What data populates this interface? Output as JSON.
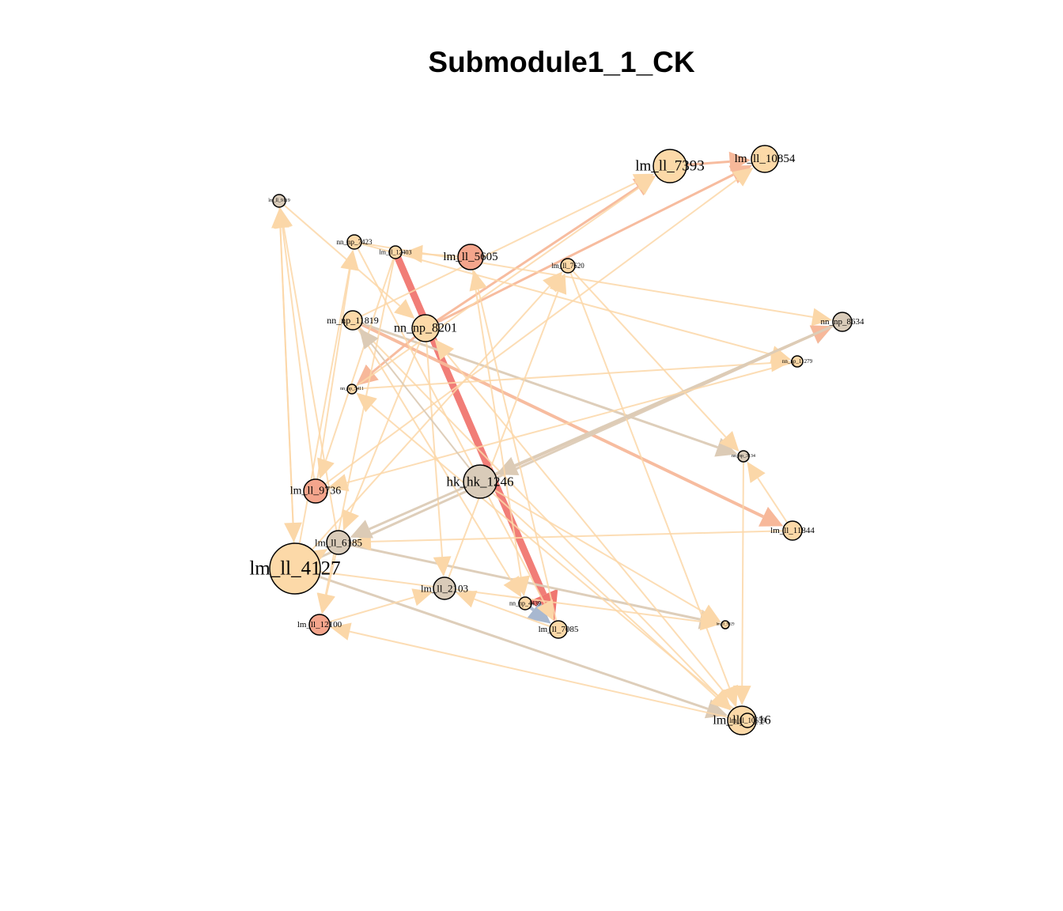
{
  "title": "Submodule1_1_CK",
  "colors": {
    "peach": "#fcd9a8",
    "salmon": "#f4a58c",
    "gray": "#d9cbb9",
    "light": "#fbe0b9",
    "edge_light": "#fbd7a8",
    "edge_gray": "#dccbb6",
    "edge_salmon": "#f7b89a",
    "edge_red": "#f07670",
    "edge_blue": "#a8b8d0"
  },
  "nodes": [
    {
      "id": "n0",
      "label": "lm_ll_7393",
      "color": "peach",
      "r": 21,
      "fs": 19
    },
    {
      "id": "n1",
      "label": "lm_ll_10854",
      "color": "peach",
      "r": 17,
      "fs": 15
    },
    {
      "id": "n2",
      "label": "lm_ll_9119",
      "color": "gray",
      "r": 8,
      "fs": 6
    },
    {
      "id": "n3",
      "label": "nn_np_7423",
      "color": "peach",
      "r": 9,
      "fs": 9
    },
    {
      "id": "n4",
      "label": "lm_ll_12403",
      "color": "peach",
      "r": 8,
      "fs": 8
    },
    {
      "id": "n5",
      "label": "lm_ll_5605",
      "color": "salmon",
      "r": 16,
      "fs": 15
    },
    {
      "id": "n6",
      "label": "lm_ll_7620",
      "color": "peach",
      "r": 9,
      "fs": 9
    },
    {
      "id": "n7",
      "label": "nn_np_11819",
      "color": "peach",
      "r": 12,
      "fs": 12
    },
    {
      "id": "n8",
      "label": "nn_np_8201",
      "color": "peach",
      "r": 17,
      "fs": 16
    },
    {
      "id": "n9",
      "label": "nn_np_8634",
      "color": "gray",
      "r": 12,
      "fs": 11
    },
    {
      "id": "n10",
      "label": "nn_np_11279",
      "color": "peach",
      "r": 7,
      "fs": 7
    },
    {
      "id": "n11",
      "label": "nn_np_5411",
      "color": "peach",
      "r": 6,
      "fs": 6
    },
    {
      "id": "n12",
      "label": "nn_np_3134",
      "color": "gray",
      "r": 7,
      "fs": 6
    },
    {
      "id": "n13",
      "label": "hk_hk_1246",
      "color": "gray",
      "r": 21,
      "fs": 17
    },
    {
      "id": "n14",
      "label": "lm_ll_9736",
      "color": "salmon",
      "r": 15,
      "fs": 14
    },
    {
      "id": "n15",
      "label": "lm_ll_11844",
      "color": "peach",
      "r": 12,
      "fs": 11
    },
    {
      "id": "n16",
      "label": "lm_ll_6185",
      "color": "gray",
      "r": 15,
      "fs": 13
    },
    {
      "id": "n17",
      "label": "lm_ll_4127",
      "color": "peach",
      "r": 32,
      "fs": 25
    },
    {
      "id": "n18",
      "label": "lm_ll_2103",
      "color": "gray",
      "r": 14,
      "fs": 13
    },
    {
      "id": "n19",
      "label": "nn_np_4439",
      "color": "peach",
      "r": 8,
      "fs": 8
    },
    {
      "id": "n20",
      "label": "lm_ll_7085",
      "color": "peach",
      "r": 11,
      "fs": 11
    },
    {
      "id": "n21",
      "label": "lm_ll_9929",
      "color": "peach",
      "r": 5,
      "fs": 5
    },
    {
      "id": "n22",
      "label": "lm_ll_12100",
      "color": "salmon",
      "r": 13,
      "fs": 11
    },
    {
      "id": "n23",
      "label": "lm_ll_5116",
      "color": "peach",
      "r": 18,
      "fs": 16
    },
    {
      "id": "n24",
      "label": "lm_ll_10559",
      "color": "peach",
      "r": 9,
      "fs": 9
    }
  ],
  "edges": [
    {
      "s": "n4",
      "t": "n20",
      "w": 9,
      "c": "edge_red"
    },
    {
      "s": "n19",
      "t": "n20",
      "w": 4,
      "c": "edge_blue"
    },
    {
      "s": "n8",
      "t": "n0",
      "w": 3,
      "c": "edge_salmon"
    },
    {
      "s": "n8",
      "t": "n1",
      "w": 3,
      "c": "edge_salmon"
    },
    {
      "s": "n0",
      "t": "n1",
      "w": 3,
      "c": "edge_salmon"
    },
    {
      "s": "n7",
      "t": "n15",
      "w": 4,
      "c": "edge_salmon"
    },
    {
      "s": "n7",
      "t": "n12",
      "w": 3,
      "c": "edge_gray"
    },
    {
      "s": "n17",
      "t": "n9",
      "w": 3,
      "c": "edge_gray"
    },
    {
      "s": "n13",
      "t": "n9",
      "w": 3,
      "c": "edge_salmon"
    },
    {
      "s": "n8",
      "t": "n11",
      "w": 3,
      "c": "edge_salmon"
    },
    {
      "s": "n16",
      "t": "n21",
      "w": 3,
      "c": "edge_gray"
    },
    {
      "s": "n17",
      "t": "n23",
      "w": 3,
      "c": "edge_gray"
    },
    {
      "s": "n7",
      "t": "n23",
      "w": 2,
      "c": "edge_light"
    },
    {
      "s": "n17",
      "t": "n2",
      "w": 2,
      "c": "edge_light"
    },
    {
      "s": "n14",
      "t": "n2",
      "w": 2,
      "c": "edge_light"
    },
    {
      "s": "n16",
      "t": "n2",
      "w": 2,
      "c": "edge_light"
    },
    {
      "s": "n17",
      "t": "n3",
      "w": 2,
      "c": "edge_light"
    },
    {
      "s": "n14",
      "t": "n3",
      "w": 2,
      "c": "edge_light"
    },
    {
      "s": "n5",
      "t": "n4",
      "w": 2,
      "c": "edge_light"
    },
    {
      "s": "n2",
      "t": "n8",
      "w": 2,
      "c": "edge_light"
    },
    {
      "s": "n3",
      "t": "n10",
      "w": 2,
      "c": "edge_light"
    },
    {
      "s": "n3",
      "t": "n9",
      "w": 2,
      "c": "edge_light"
    },
    {
      "s": "n7",
      "t": "n0",
      "w": 2,
      "c": "edge_light"
    },
    {
      "s": "n11",
      "t": "n0",
      "w": 2,
      "c": "edge_light"
    },
    {
      "s": "n14",
      "t": "n1",
      "w": 2,
      "c": "edge_light"
    },
    {
      "s": "n18",
      "t": "n6",
      "w": 2,
      "c": "edge_light"
    },
    {
      "s": "n17",
      "t": "n6",
      "w": 2,
      "c": "edge_light"
    },
    {
      "s": "n20",
      "t": "n5",
      "w": 2,
      "c": "edge_light"
    },
    {
      "s": "n6",
      "t": "n12",
      "w": 2,
      "c": "edge_light"
    },
    {
      "s": "n6",
      "t": "n23",
      "w": 2,
      "c": "edge_light"
    },
    {
      "s": "n11",
      "t": "n10",
      "w": 2,
      "c": "edge_light"
    },
    {
      "s": "n4",
      "t": "n14",
      "w": 2,
      "c": "edge_light"
    },
    {
      "s": "n4",
      "t": "n22",
      "w": 2,
      "c": "edge_light"
    },
    {
      "s": "n8",
      "t": "n16",
      "w": 2,
      "c": "edge_light"
    },
    {
      "s": "n8",
      "t": "n18",
      "w": 2,
      "c": "edge_light"
    },
    {
      "s": "n3",
      "t": "n20",
      "w": 2,
      "c": "edge_light"
    },
    {
      "s": "n7",
      "t": "n19",
      "w": 2,
      "c": "edge_light"
    },
    {
      "s": "n24",
      "t": "n11",
      "w": 2,
      "c": "edge_light"
    },
    {
      "s": "n23",
      "t": "n22",
      "w": 2,
      "c": "edge_light"
    },
    {
      "s": "n17",
      "t": "n21",
      "w": 2,
      "c": "edge_light"
    },
    {
      "s": "n17",
      "t": "n16",
      "w": 2,
      "c": "edge_light"
    },
    {
      "s": "n15",
      "t": "n16",
      "w": 2,
      "c": "edge_light"
    },
    {
      "s": "n12",
      "t": "n23",
      "w": 2,
      "c": "edge_light"
    },
    {
      "s": "n15",
      "t": "n12",
      "w": 2,
      "c": "edge_light"
    },
    {
      "s": "n13",
      "t": "n23",
      "w": 2,
      "c": "edge_light"
    },
    {
      "s": "n22",
      "t": "n18",
      "w": 2,
      "c": "edge_light"
    },
    {
      "s": "n20",
      "t": "n18",
      "w": 2,
      "c": "edge_light"
    },
    {
      "s": "n9",
      "t": "n16",
      "w": 3,
      "c": "edge_gray"
    },
    {
      "s": "n9",
      "t": "n13",
      "w": 3,
      "c": "edge_gray"
    },
    {
      "s": "n10",
      "t": "n14",
      "w": 2,
      "c": "edge_light"
    },
    {
      "s": "n5",
      "t": "n19",
      "w": 2,
      "c": "edge_light"
    },
    {
      "s": "n2",
      "t": "n17",
      "w": 2,
      "c": "edge_light"
    },
    {
      "s": "n16",
      "t": "n22",
      "w": 2,
      "c": "edge_light"
    },
    {
      "s": "n13",
      "t": "n7",
      "w": 2,
      "c": "edge_gray"
    },
    {
      "s": "n24",
      "t": "n8",
      "w": 2,
      "c": "edge_light"
    },
    {
      "s": "n13",
      "t": "n21",
      "w": 2,
      "c": "edge_light"
    }
  ]
}
